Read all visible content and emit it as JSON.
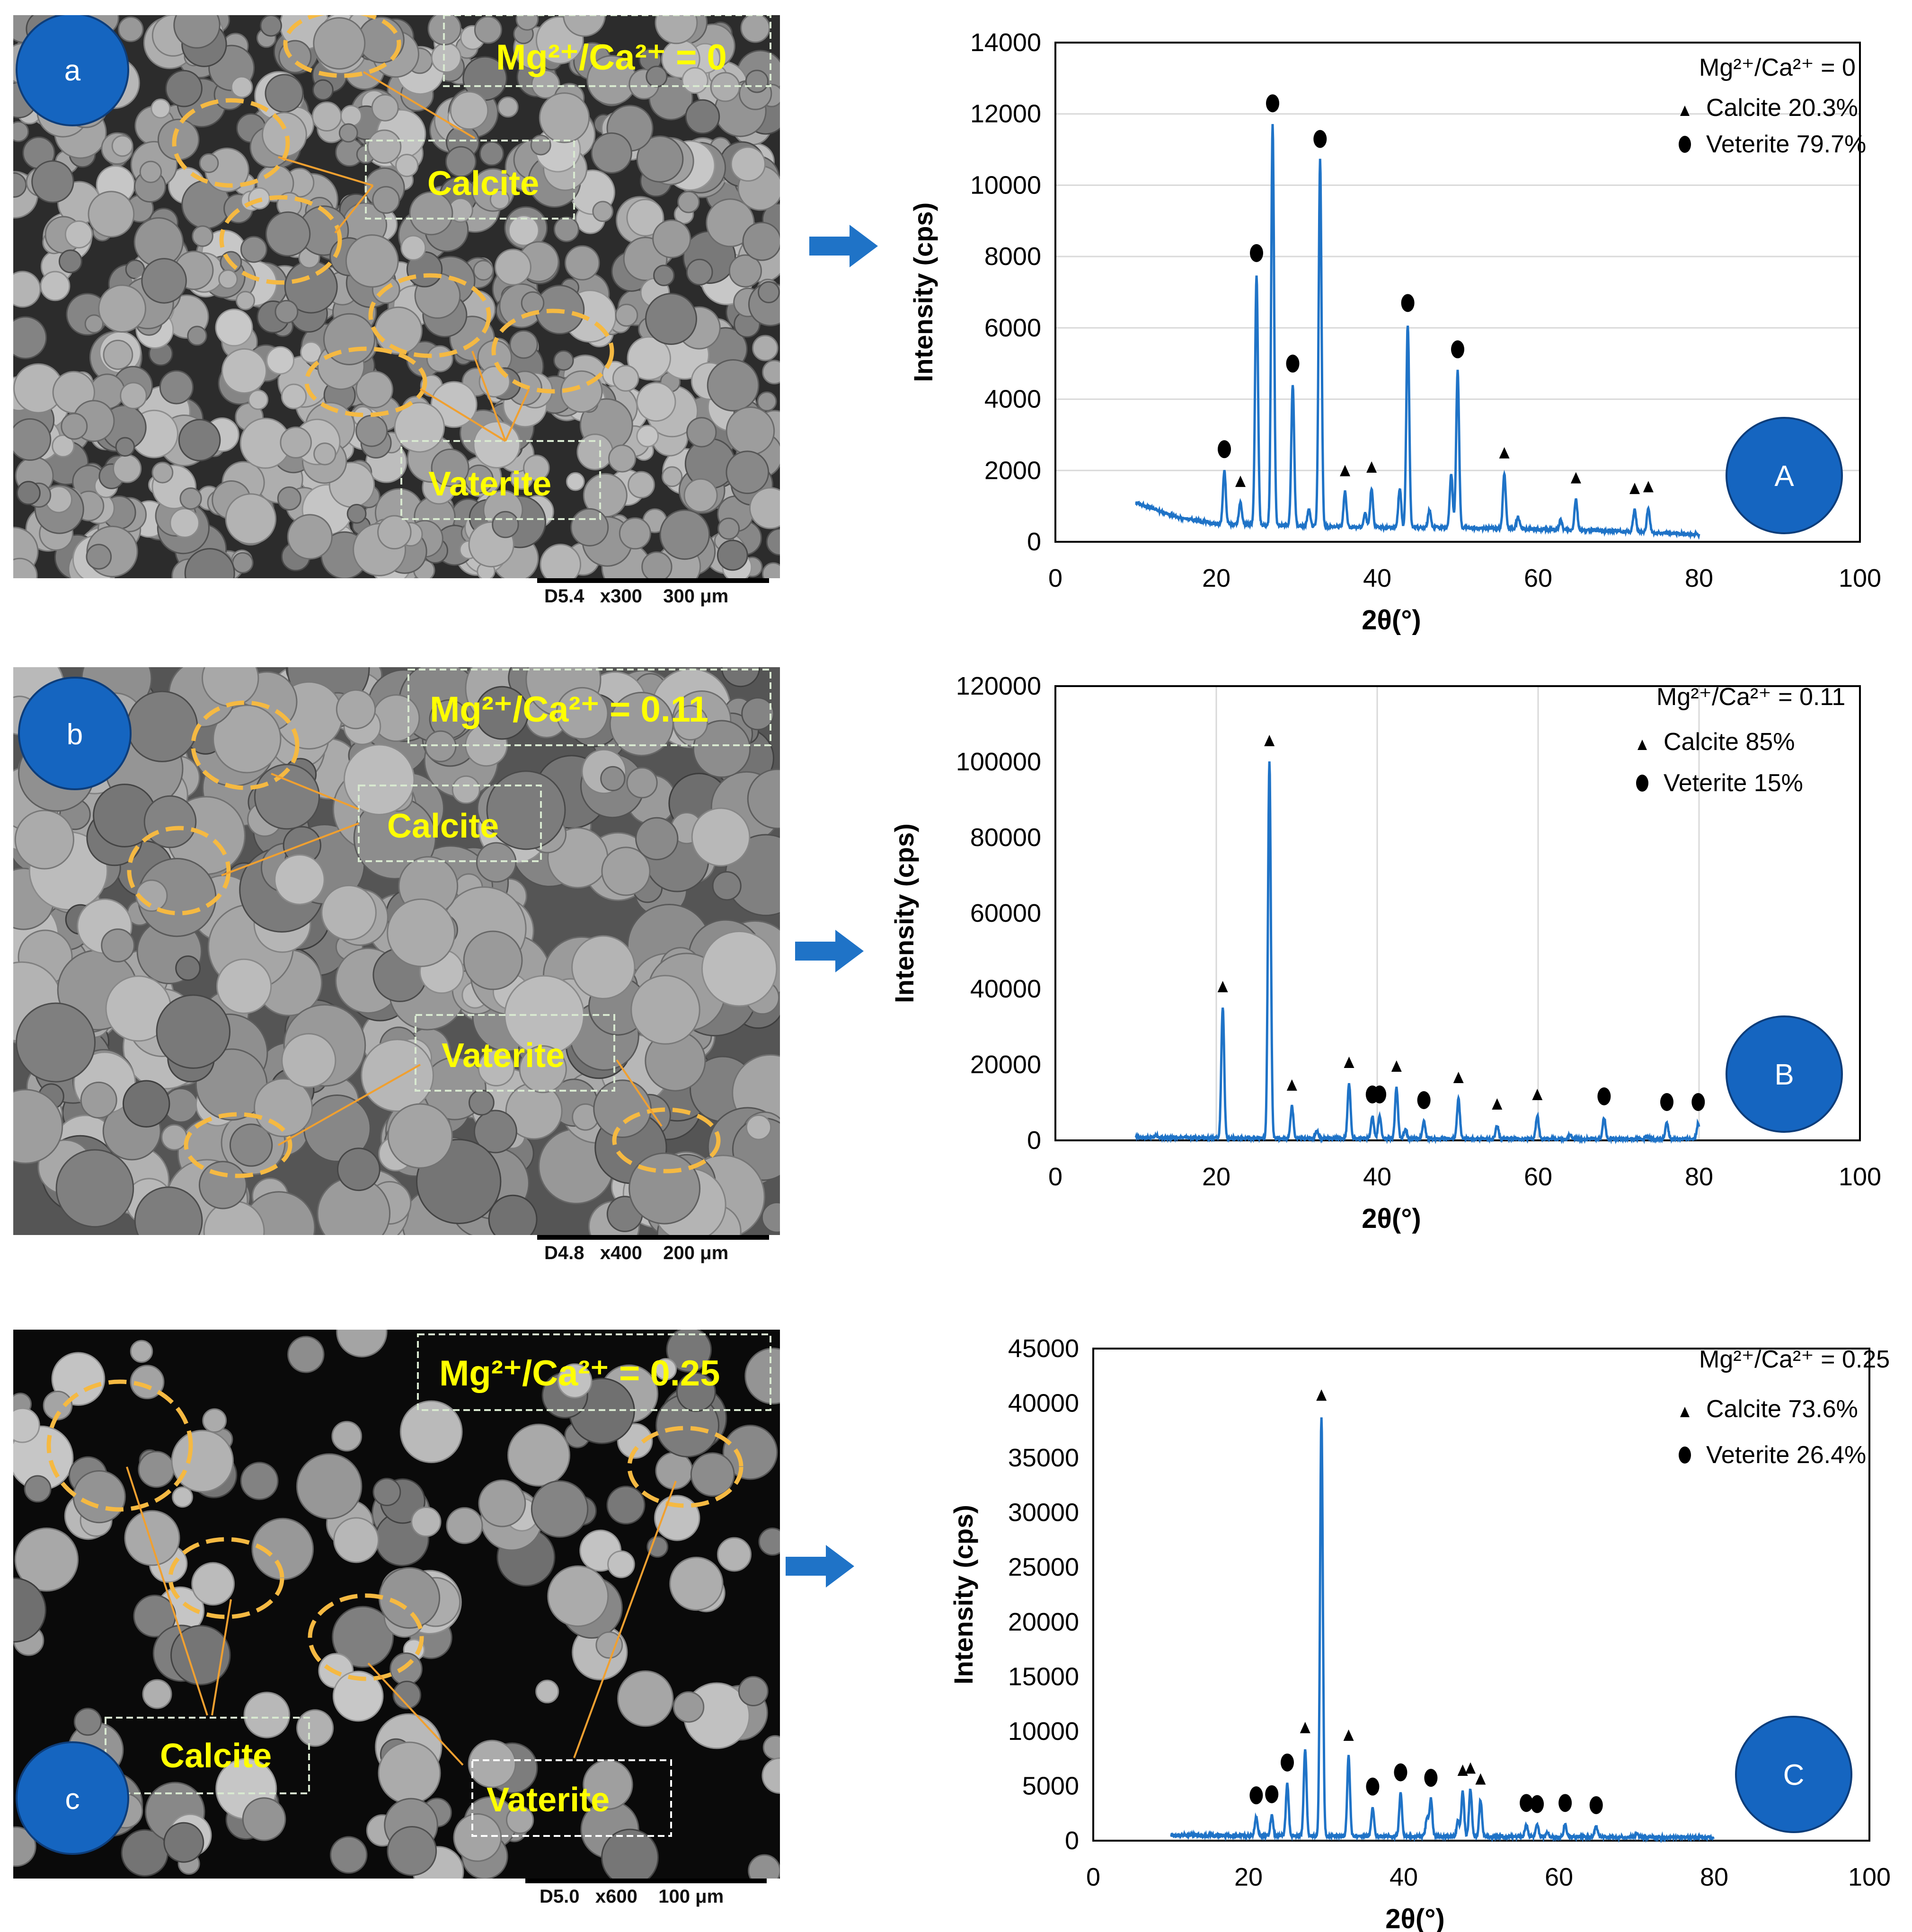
{
  "panels": [
    {
      "sem": {
        "label": "a",
        "ratio_text": "Mg²⁺/Ca²⁺ = 0",
        "calcite_label": "Calcite",
        "vaterite_label": "Vaterite",
        "scale_bar": "D5.4   x300    300 μm",
        "background": "dark-grey"
      }
    },
    {
      "sem": {
        "label": "b",
        "ratio_text": "Mg²⁺/Ca²⁺ = 0.11",
        "calcite_label": "Calcite",
        "vaterite_label": "Vaterite",
        "scale_bar": "D4.8   x400    200 μm",
        "background": "grey"
      }
    },
    {
      "sem": {
        "label": "c",
        "ratio_text": "Mg²⁺/Ca²⁺ = 0.25",
        "calcite_label": "Calcite",
        "vaterite_label": "Vaterite",
        "scale_bar": "D5.0   x600    100 μm",
        "background": "black"
      }
    }
  ],
  "colors": {
    "line": "#1f73c7",
    "badge": "#1565c0",
    "arrow": "#1f73c7",
    "highlight_text": "#ffff00",
    "ellipse": "#f5b942",
    "leader": "#f0a030"
  },
  "chart_data": [
    {
      "type": "line",
      "panel_label": "A",
      "xlabel": "2θ(°)",
      "ylabel": "Intensity (cps)",
      "xlim": [
        0,
        100
      ],
      "ylim": [
        0,
        14000
      ],
      "x_ticks": [
        0,
        20,
        40,
        60,
        80,
        100
      ],
      "y_ticks": [
        0,
        2000,
        4000,
        6000,
        8000,
        10000,
        12000,
        14000
      ],
      "legend": {
        "title": "Mg²⁺/Ca²⁺ = 0",
        "calcite": "Calcite 20.3%",
        "vaterite": "Veterite 79.7%"
      },
      "baseline": [
        [
          10,
          1100
        ],
        [
          15,
          700
        ],
        [
          20,
          500
        ],
        [
          30,
          450
        ],
        [
          40,
          400
        ],
        [
          50,
          400
        ],
        [
          60,
          350
        ],
        [
          70,
          300
        ],
        [
          80,
          200
        ]
      ],
      "peaks": [
        {
          "x": 21.0,
          "y": 2000,
          "m": "v"
        },
        {
          "x": 23.0,
          "y": 1100,
          "m": "c"
        },
        {
          "x": 25.0,
          "y": 7500,
          "m": "v"
        },
        {
          "x": 27.0,
          "y": 11700,
          "m": "v"
        },
        {
          "x": 29.5,
          "y": 4400,
          "m": "v"
        },
        {
          "x": 32.9,
          "y": 10700,
          "m": "v"
        },
        {
          "x": 36.0,
          "y": 1400,
          "m": "c"
        },
        {
          "x": 39.3,
          "y": 1500,
          "m": "c"
        },
        {
          "x": 43.8,
          "y": 6100,
          "m": "v"
        },
        {
          "x": 50.0,
          "y": 4800,
          "m": "v"
        },
        {
          "x": 55.8,
          "y": 1900,
          "m": "c"
        },
        {
          "x": 64.7,
          "y": 1200,
          "m": "c"
        },
        {
          "x": 72.0,
          "y": 900,
          "m": "c"
        },
        {
          "x": 73.7,
          "y": 950,
          "m": "c"
        }
      ],
      "minor_peaks": [
        [
          31.5,
          900
        ],
        [
          38.5,
          800
        ],
        [
          42.8,
          1500
        ],
        [
          49.2,
          1900
        ],
        [
          46.5,
          900
        ],
        [
          57.5,
          700
        ],
        [
          62.8,
          600
        ]
      ]
    },
    {
      "type": "line",
      "panel_label": "B",
      "xlabel": "2θ(°)",
      "ylabel": "Intensity (cps)",
      "xlim": [
        0,
        100
      ],
      "ylim": [
        0,
        120000
      ],
      "x_ticks": [
        0,
        20,
        40,
        60,
        80,
        100
      ],
      "y_ticks": [
        0,
        20000,
        40000,
        60000,
        80000,
        100000,
        120000
      ],
      "legend": {
        "title": "Mg²⁺/Ca²⁺ = 0.11",
        "calcite": "Calcite 85%",
        "vaterite": "Veterite 15%"
      },
      "baseline": [
        [
          10,
          800
        ],
        [
          20,
          600
        ],
        [
          40,
          500
        ],
        [
          60,
          400
        ],
        [
          80,
          400
        ]
      ],
      "peaks": [
        {
          "x": 20.8,
          "y": 35000,
          "m": "c"
        },
        {
          "x": 26.6,
          "y": 100000,
          "m": "c"
        },
        {
          "x": 29.4,
          "y": 9000,
          "m": "c"
        },
        {
          "x": 36.5,
          "y": 15000,
          "m": "c"
        },
        {
          "x": 39.4,
          "y": 6500,
          "m": "v"
        },
        {
          "x": 40.3,
          "y": 6500,
          "m": "v"
        },
        {
          "x": 42.4,
          "y": 14000,
          "m": "c"
        },
        {
          "x": 45.8,
          "y": 5000,
          "m": "v"
        },
        {
          "x": 50.1,
          "y": 11000,
          "m": "c"
        },
        {
          "x": 54.9,
          "y": 4000,
          "m": "c"
        },
        {
          "x": 59.9,
          "y": 6500,
          "m": "c"
        },
        {
          "x": 68.2,
          "y": 6000,
          "m": "v"
        },
        {
          "x": 76.0,
          "y": 4500,
          "m": "v"
        },
        {
          "x": 79.9,
          "y": 4500,
          "m": "v"
        }
      ],
      "minor_peaks": [
        [
          12.5,
          1500
        ],
        [
          32.5,
          2500
        ],
        [
          43.5,
          3000
        ],
        [
          64.0,
          1500
        ],
        [
          73.5,
          1200
        ]
      ]
    },
    {
      "type": "line",
      "panel_label": "C",
      "xlabel": "2θ(°)",
      "ylabel": "Intensity (cps)",
      "xlim": [
        0,
        100
      ],
      "ylim": [
        0,
        45000
      ],
      "x_ticks": [
        0,
        20,
        40,
        60,
        80,
        100
      ],
      "y_ticks": [
        0,
        5000,
        10000,
        15000,
        20000,
        25000,
        30000,
        35000,
        40000,
        45000
      ],
      "legend": {
        "title": "Mg²⁺/Ca²⁺ = 0.25",
        "calcite": "Calcite 73.6%",
        "vaterite": "Veterite 26.4%"
      },
      "baseline": [
        [
          10,
          500
        ],
        [
          20,
          450
        ],
        [
          40,
          400
        ],
        [
          60,
          350
        ],
        [
          80,
          300
        ]
      ],
      "peaks": [
        {
          "x": 21.0,
          "y": 2200,
          "m": "v"
        },
        {
          "x": 23.0,
          "y": 2300,
          "m": "v"
        },
        {
          "x": 25.0,
          "y": 5200,
          "m": "v"
        },
        {
          "x": 27.3,
          "y": 8400,
          "m": "c"
        },
        {
          "x": 29.4,
          "y": 38800,
          "m": "c"
        },
        {
          "x": 32.9,
          "y": 7700,
          "m": "c"
        },
        {
          "x": 36.0,
          "y": 3000,
          "m": "v"
        },
        {
          "x": 39.6,
          "y": 4300,
          "m": "v"
        },
        {
          "x": 43.5,
          "y": 3800,
          "m": "v"
        },
        {
          "x": 47.6,
          "y": 4500,
          "m": "c"
        },
        {
          "x": 48.6,
          "y": 4700,
          "m": "c"
        },
        {
          "x": 49.9,
          "y": 3700,
          "m": "c"
        },
        {
          "x": 55.8,
          "y": 1500,
          "m": "v"
        },
        {
          "x": 57.2,
          "y": 1400,
          "m": "v"
        },
        {
          "x": 60.8,
          "y": 1500,
          "m": "v"
        },
        {
          "x": 64.8,
          "y": 1300,
          "m": "v"
        }
      ],
      "minor_peaks": [
        [
          43.0,
          2000
        ],
        [
          47.0,
          1800
        ],
        [
          58.5,
          800
        ],
        [
          70.0,
          600
        ]
      ]
    }
  ]
}
